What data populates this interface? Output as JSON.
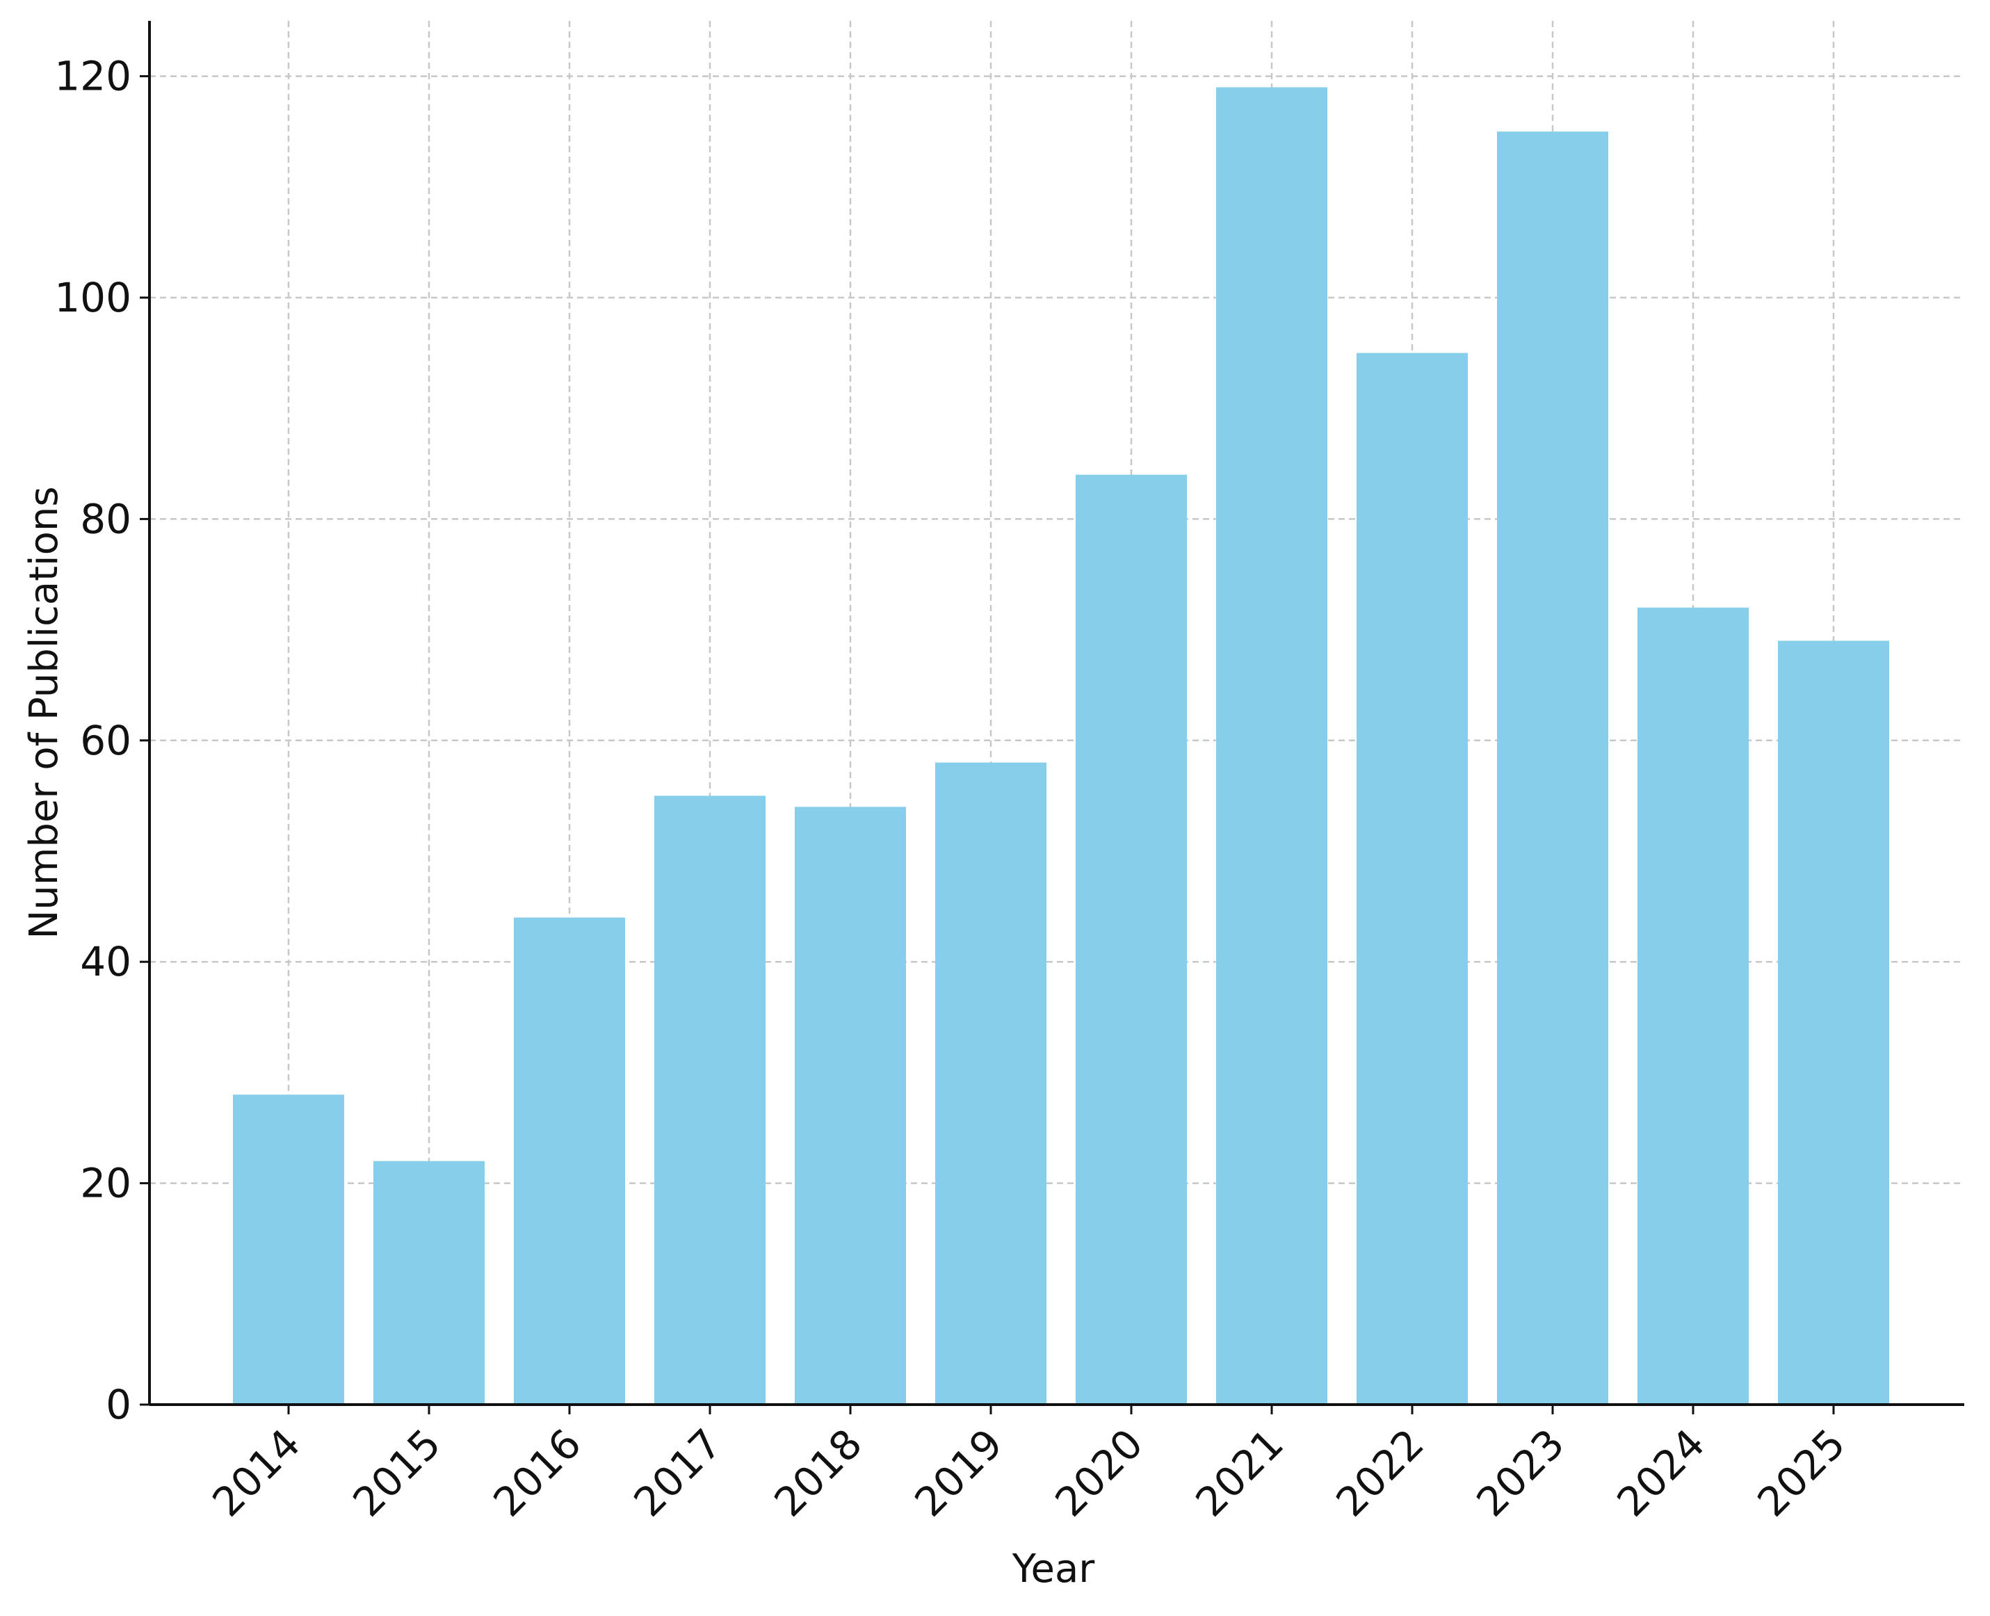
{
  "chart_data": {
    "type": "bar",
    "title": "",
    "xlabel": "Year",
    "ylabel": "Number of Publications",
    "categories": [
      "2014",
      "2015",
      "2016",
      "2017",
      "2018",
      "2019",
      "2020",
      "2021",
      "2022",
      "2023",
      "2024",
      "2025"
    ],
    "values": [
      28,
      22,
      44,
      55,
      54,
      58,
      84,
      119,
      95,
      115,
      72,
      69
    ],
    "ylim": [
      0,
      125
    ],
    "yticks": [
      0,
      20,
      40,
      60,
      80,
      100,
      120
    ],
    "grid": true,
    "legend": "none",
    "bar_color": "#87CEEB",
    "grid_color": "#c8c8c8",
    "axis_color": "#111111"
  }
}
